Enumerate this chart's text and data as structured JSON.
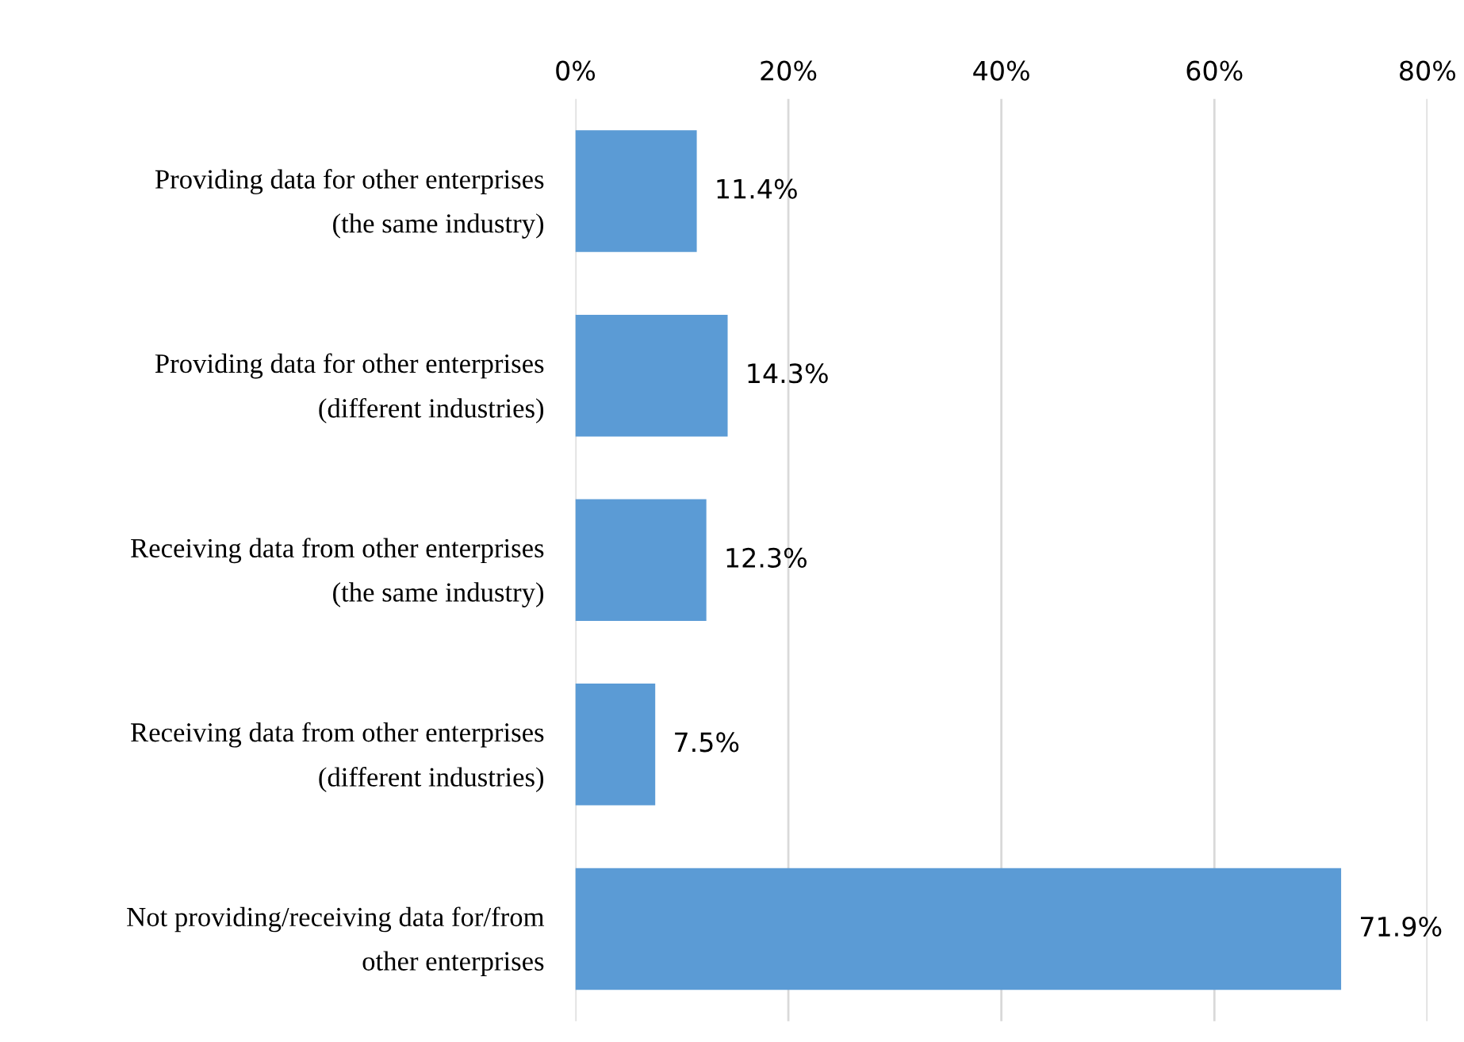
{
  "chart_data": {
    "type": "bar",
    "orientation": "horizontal",
    "categories": [
      "Providing data for other enterprises\n(the same industry)",
      "Providing data for other enterprises\n(different industries)",
      "Receiving data from other enterprises\n(the same industry)",
      "Receiving data from other enterprises\n(different industries)",
      "Not providing/receiving data for/from\nother enterprises"
    ],
    "values": [
      11.4,
      14.3,
      12.3,
      7.5,
      71.9
    ],
    "value_labels": [
      "11.4%",
      "14.3%",
      "12.3%",
      "7.5%",
      "71.9%"
    ],
    "color": "#5b9bd5",
    "xlim": [
      0,
      80
    ],
    "xticks": [
      {
        "value": 0,
        "label": "0%"
      },
      {
        "value": 20,
        "label": "20%"
      },
      {
        "value": 40,
        "label": "40%"
      },
      {
        "value": 60,
        "label": "60%"
      },
      {
        "value": 80,
        "label": "80%"
      }
    ],
    "grid": "x",
    "legend": false
  }
}
